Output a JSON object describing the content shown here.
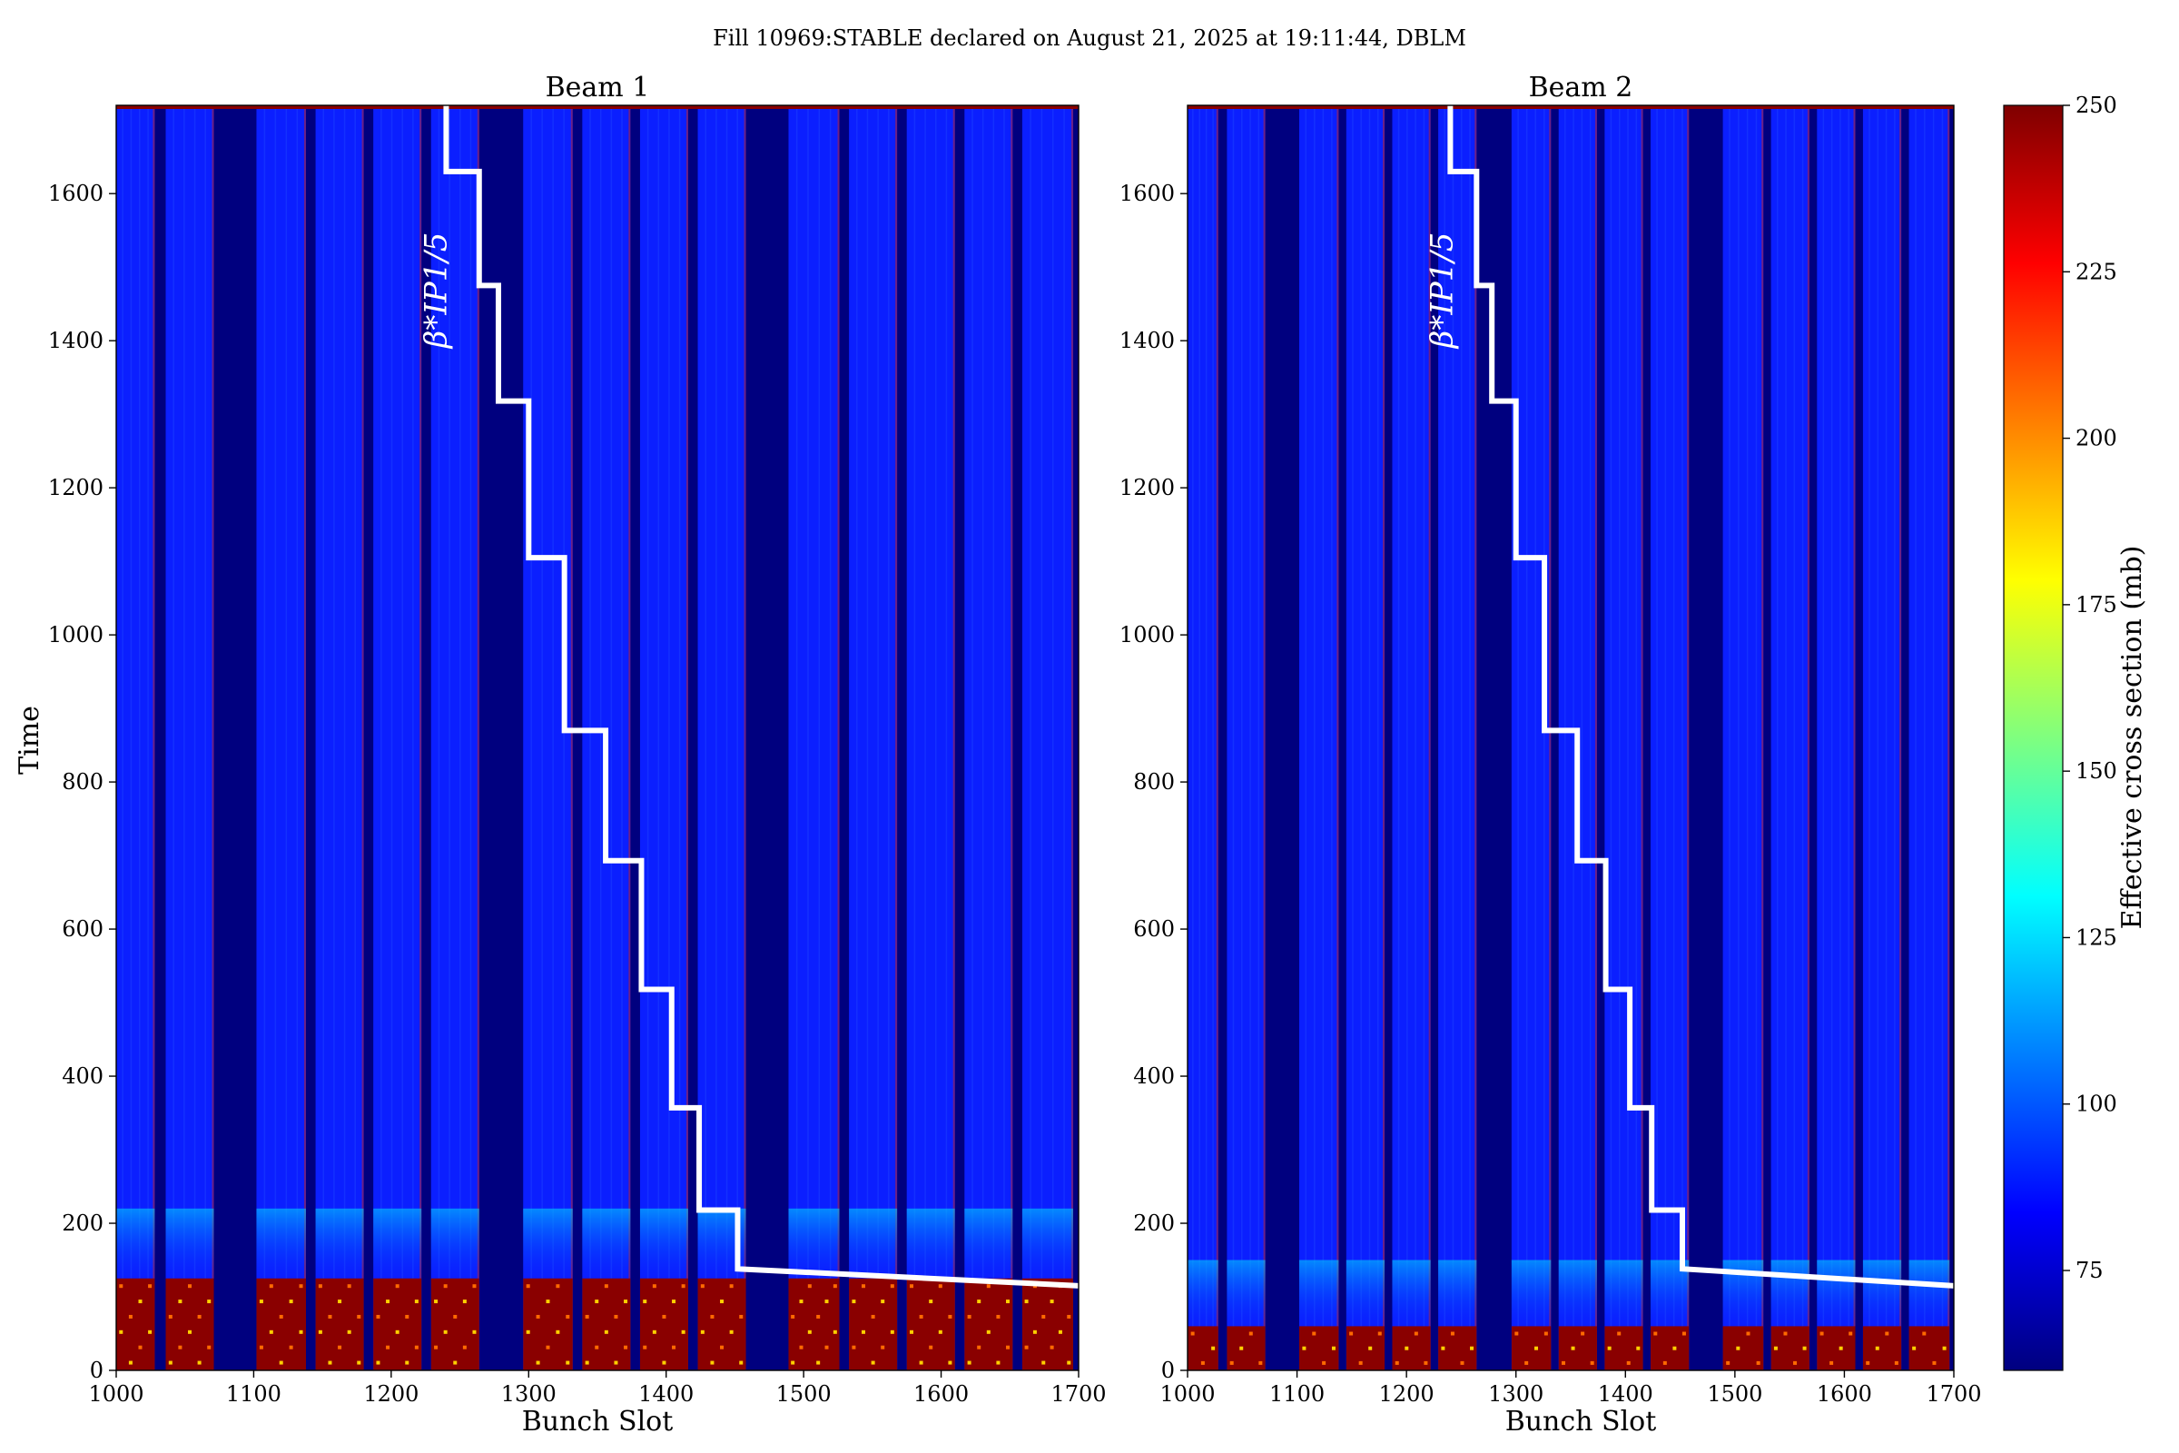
{
  "figure": {
    "suptitle": "Fill 10969:STABLE declared on August 21, 2025 at 19:11:44, DBLM",
    "ylabel": "Time",
    "colorbar_label": "Effective cross section (mb)"
  },
  "chart_data": [
    {
      "type": "heatmap",
      "title": "Beam 1",
      "xlabel": "Bunch Slot",
      "ylabel": "Time",
      "xlim": [
        1000,
        1700
      ],
      "ylim": [
        0,
        1720
      ],
      "x_ticks": [
        1000,
        1100,
        1200,
        1300,
        1400,
        1500,
        1600,
        1700
      ],
      "y_ticks": [
        0,
        200,
        400,
        600,
        800,
        1000,
        1200,
        1400,
        1600
      ],
      "filled_trains": [
        [
          1000,
          1028
        ],
        [
          1036,
          1071
        ],
        [
          1102,
          1138
        ],
        [
          1145,
          1180
        ],
        [
          1187,
          1222
        ],
        [
          1229,
          1264
        ],
        [
          1296,
          1332
        ],
        [
          1339,
          1374
        ],
        [
          1381,
          1416
        ],
        [
          1423,
          1458
        ],
        [
          1489,
          1526
        ],
        [
          1533,
          1568
        ],
        [
          1575,
          1610
        ],
        [
          1617,
          1652
        ],
        [
          1659,
          1696
        ]
      ],
      "empty_gaps": [
        [
          1071,
          1102
        ],
        [
          1264,
          1296
        ],
        [
          1458,
          1489
        ],
        [
          1696,
          1700
        ]
      ],
      "low_time_region": {
        "t_max": 125,
        "level_mb": 250,
        "description_value_mb": 250
      },
      "cmap": "jet",
      "beta_star_label": "β*IP1/5",
      "beta_star_steps": [
        {
          "slot": 1240,
          "t_from": 1720,
          "t_to": 1630
        },
        {
          "slot": 1264,
          "t_from": 1630,
          "t_to": 1475
        },
        {
          "slot": 1278,
          "t_from": 1475,
          "t_to": 1318
        },
        {
          "slot": 1300,
          "t_from": 1318,
          "t_to": 1105
        },
        {
          "slot": 1326,
          "t_from": 1105,
          "t_to": 870
        },
        {
          "slot": 1356,
          "t_from": 870,
          "t_to": 693
        },
        {
          "slot": 1382,
          "t_from": 693,
          "t_to": 518
        },
        {
          "slot": 1404,
          "t_from": 518,
          "t_to": 357
        },
        {
          "slot": 1424,
          "t_from": 357,
          "t_to": 218
        },
        {
          "slot": 1452,
          "t_from": 218,
          "t_to": 138
        }
      ],
      "beta_star_tail": [
        [
          1452,
          138
        ],
        [
          1700,
          115
        ]
      ]
    },
    {
      "type": "heatmap",
      "title": "Beam 2",
      "xlabel": "Bunch Slot",
      "xlim": [
        1000,
        1700
      ],
      "ylim": [
        0,
        1720
      ],
      "x_ticks": [
        1000,
        1100,
        1200,
        1300,
        1400,
        1500,
        1600,
        1700
      ],
      "y_ticks": [
        0,
        200,
        400,
        600,
        800,
        1000,
        1200,
        1400,
        1600
      ],
      "filled_trains": [
        [
          1000,
          1028
        ],
        [
          1036,
          1071
        ],
        [
          1102,
          1138
        ],
        [
          1145,
          1180
        ],
        [
          1187,
          1222
        ],
        [
          1229,
          1264
        ],
        [
          1296,
          1332
        ],
        [
          1339,
          1374
        ],
        [
          1381,
          1416
        ],
        [
          1423,
          1458
        ],
        [
          1489,
          1526
        ],
        [
          1533,
          1568
        ],
        [
          1575,
          1610
        ],
        [
          1617,
          1652
        ],
        [
          1659,
          1696
        ]
      ],
      "empty_gaps": [
        [
          1071,
          1102
        ],
        [
          1264,
          1296
        ],
        [
          1458,
          1489
        ],
        [
          1696,
          1700
        ]
      ],
      "low_time_region": {
        "t_max": 60,
        "level_mb": 250
      },
      "cmap": "jet",
      "beta_star_label": "β*IP1/5",
      "beta_star_steps": [
        {
          "slot": 1240,
          "t_from": 1720,
          "t_to": 1630
        },
        {
          "slot": 1264,
          "t_from": 1630,
          "t_to": 1475
        },
        {
          "slot": 1278,
          "t_from": 1475,
          "t_to": 1318
        },
        {
          "slot": 1300,
          "t_from": 1318,
          "t_to": 1105
        },
        {
          "slot": 1326,
          "t_from": 1105,
          "t_to": 870
        },
        {
          "slot": 1356,
          "t_from": 870,
          "t_to": 693
        },
        {
          "slot": 1382,
          "t_from": 693,
          "t_to": 518
        },
        {
          "slot": 1404,
          "t_from": 518,
          "t_to": 357
        },
        {
          "slot": 1424,
          "t_from": 357,
          "t_to": 218
        },
        {
          "slot": 1452,
          "t_from": 218,
          "t_to": 138
        }
      ],
      "beta_star_tail": [
        [
          1452,
          138
        ],
        [
          1700,
          115
        ]
      ]
    }
  ],
  "colorbar": {
    "range": [
      60,
      250
    ],
    "ticks": [
      75,
      100,
      125,
      150,
      175,
      200,
      225,
      250
    ],
    "cmap": "jet",
    "colors": [
      "#00007f",
      "#0000ff",
      "#007fff",
      "#00ffff",
      "#7fff7f",
      "#ffff00",
      "#ff7f00",
      "#ff0000",
      "#7f0000"
    ]
  }
}
